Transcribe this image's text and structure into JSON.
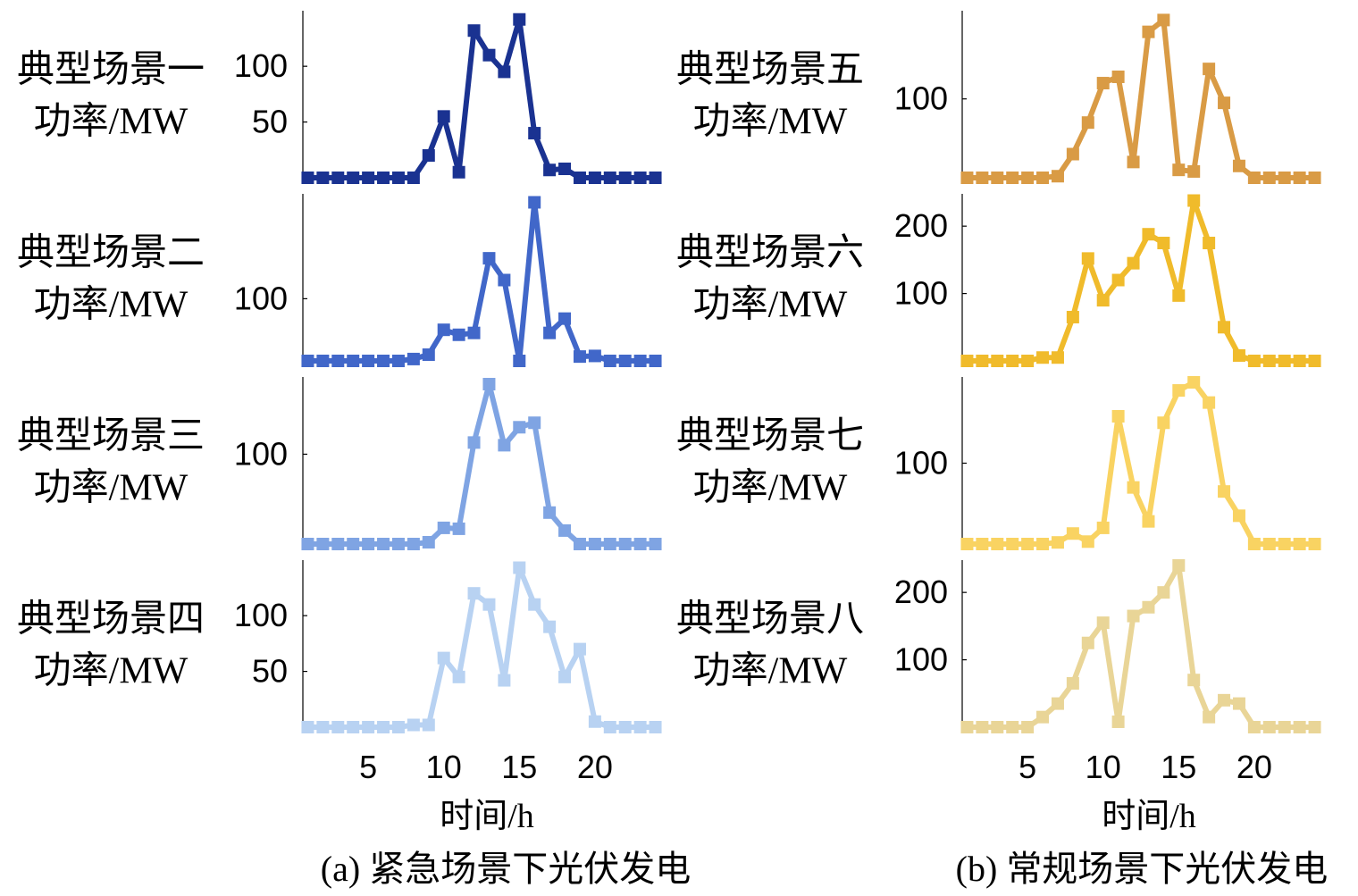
{
  "chart_data": [
    {
      "type": "line",
      "panel_caption": "(a) 紧急场景下光伏发电",
      "xlabel": "时间/h",
      "xticks": [
        5,
        10,
        15,
        20
      ],
      "xlim": [
        0.5,
        24.5
      ],
      "x": [
        1,
        2,
        3,
        4,
        5,
        6,
        7,
        8,
        9,
        10,
        11,
        12,
        13,
        14,
        15,
        16,
        17,
        18,
        19,
        20,
        21,
        22,
        23,
        24
      ],
      "subplots": [
        {
          "name": "典型场景一",
          "ylabel": [
            "典型场景一",
            "功率/MW"
          ],
          "color": "#1a3291",
          "ylim": [
            0,
            145
          ],
          "yticks": [
            50,
            100
          ],
          "values": [
            0,
            0,
            0,
            0,
            0,
            0,
            0,
            0,
            20,
            55,
            5,
            132,
            110,
            95,
            142,
            40,
            7,
            8,
            0,
            0,
            0,
            0,
            0,
            0
          ]
        },
        {
          "name": "典型场景二",
          "ylabel": [
            "典型场景二",
            "功率/MW"
          ],
          "color": "#4167c9",
          "ylim": [
            0,
            260
          ],
          "yticks": [
            100
          ],
          "values": [
            0,
            0,
            0,
            0,
            0,
            0,
            0,
            3,
            10,
            50,
            42,
            45,
            165,
            130,
            0,
            255,
            45,
            68,
            7,
            8,
            0,
            0,
            0,
            0
          ]
        },
        {
          "name": "典型场景三",
          "ylabel": [
            "典型场景三",
            "功率/MW"
          ],
          "color": "#7fa4e3",
          "ylim": [
            0,
            180
          ],
          "yticks": [
            100
          ],
          "values": [
            0,
            0,
            0,
            0,
            0,
            0,
            0,
            0,
            2,
            18,
            17,
            113,
            178,
            110,
            130,
            135,
            35,
            15,
            0,
            0,
            0,
            0,
            0,
            0
          ]
        },
        {
          "name": "典型场景四",
          "ylabel": [
            "典型场景四",
            "功率/MW"
          ],
          "color": "#b8d2f2",
          "ylim": [
            0,
            145
          ],
          "yticks": [
            50,
            100
          ],
          "values": [
            0,
            0,
            0,
            0,
            0,
            0,
            0,
            2,
            2,
            62,
            45,
            120,
            110,
            42,
            143,
            110,
            90,
            45,
            70,
            5,
            0,
            0,
            0,
            0
          ]
        }
      ]
    },
    {
      "type": "line",
      "panel_caption": "(b) 常规场景下光伏发电",
      "xlabel": "时间/h",
      "xticks": [
        5,
        10,
        15,
        20
      ],
      "xlim": [
        0.5,
        24.5
      ],
      "x": [
        1,
        2,
        3,
        4,
        5,
        6,
        7,
        8,
        9,
        10,
        11,
        12,
        13,
        14,
        15,
        16,
        17,
        18,
        19,
        20,
        21,
        22,
        23,
        24
      ],
      "subplots": [
        {
          "name": "典型场景五",
          "ylabel": [
            "典型场景五",
            "功率/MW"
          ],
          "color": "#d99b45",
          "ylim": [
            0,
            205
          ],
          "yticks": [
            100
          ],
          "values": [
            0,
            0,
            0,
            0,
            0,
            0,
            2,
            30,
            70,
            120,
            128,
            20,
            185,
            200,
            10,
            8,
            138,
            95,
            15,
            0,
            0,
            0,
            0,
            0
          ]
        },
        {
          "name": "典型场景六",
          "ylabel": [
            "典型场景六",
            "功率/MW"
          ],
          "color": "#f0bb2b",
          "ylim": [
            0,
            240
          ],
          "yticks": [
            100,
            200
          ],
          "values": [
            0,
            0,
            0,
            0,
            0,
            5,
            5,
            65,
            152,
            90,
            120,
            145,
            188,
            175,
            97,
            238,
            175,
            50,
            8,
            0,
            0,
            0,
            0,
            0
          ]
        },
        {
          "name": "典型场景七",
          "ylabel": [
            "典型场景七",
            "功率/MW"
          ],
          "color": "#f9d362",
          "ylim": [
            0,
            200
          ],
          "yticks": [
            100
          ],
          "values": [
            0,
            0,
            0,
            0,
            0,
            0,
            2,
            13,
            3,
            20,
            158,
            70,
            28,
            150,
            190,
            200,
            175,
            65,
            35,
            0,
            0,
            0,
            0,
            0
          ]
        },
        {
          "name": "典型场景八",
          "ylabel": [
            "典型场景八",
            "功率/MW"
          ],
          "color": "#e9d597",
          "ylim": [
            0,
            240
          ],
          "yticks": [
            100,
            200
          ],
          "values": [
            0,
            0,
            0,
            0,
            0,
            15,
            35,
            65,
            125,
            155,
            8,
            165,
            178,
            200,
            240,
            70,
            15,
            40,
            35,
            0,
            0,
            0,
            0,
            0
          ]
        }
      ]
    }
  ]
}
